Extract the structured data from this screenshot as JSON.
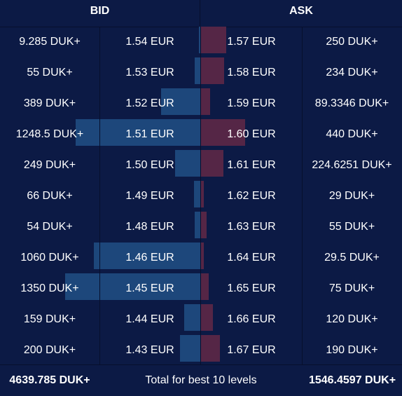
{
  "header": {
    "bid_label": "BID",
    "ask_label": "ASK"
  },
  "colors": {
    "background": "#0c1a45",
    "bid_bar": "#1f4b80",
    "ask_bar": "#5a2747",
    "grid": "#070f2c"
  },
  "max_bar_quantity": 1350,
  "levels": [
    {
      "bid_qty": "9.285 DUK+",
      "bid_qty_value": 9.285,
      "bid_price": "1.54 EUR",
      "ask_price": "1.57 EUR",
      "ask_qty": "250 DUK+",
      "ask_qty_value": 250
    },
    {
      "bid_qty": "55 DUK+",
      "bid_qty_value": 55,
      "bid_price": "1.53 EUR",
      "ask_price": "1.58 EUR",
      "ask_qty": "234 DUK+",
      "ask_qty_value": 234
    },
    {
      "bid_qty": "389 DUK+",
      "bid_qty_value": 389,
      "bid_price": "1.52 EUR",
      "ask_price": "1.59 EUR",
      "ask_qty": "89.3346 DUK+",
      "ask_qty_value": 89.3346
    },
    {
      "bid_qty": "1248.5 DUK+",
      "bid_qty_value": 1248.5,
      "bid_price": "1.51 EUR",
      "ask_price": "1.60 EUR",
      "ask_qty": "440 DUK+",
      "ask_qty_value": 440
    },
    {
      "bid_qty": "249 DUK+",
      "bid_qty_value": 249,
      "bid_price": "1.50 EUR",
      "ask_price": "1.61 EUR",
      "ask_qty": "224.6251 DUK+",
      "ask_qty_value": 224.6251
    },
    {
      "bid_qty": "66 DUK+",
      "bid_qty_value": 66,
      "bid_price": "1.49 EUR",
      "ask_price": "1.62 EUR",
      "ask_qty": "29 DUK+",
      "ask_qty_value": 29
    },
    {
      "bid_qty": "54 DUK+",
      "bid_qty_value": 54,
      "bid_price": "1.48 EUR",
      "ask_price": "1.63 EUR",
      "ask_qty": "55 DUK+",
      "ask_qty_value": 55
    },
    {
      "bid_qty": "1060 DUK+",
      "bid_qty_value": 1060,
      "bid_price": "1.46 EUR",
      "ask_price": "1.64 EUR",
      "ask_qty": "29.5 DUK+",
      "ask_qty_value": 29.5
    },
    {
      "bid_qty": "1350 DUK+",
      "bid_qty_value": 1350,
      "bid_price": "1.45 EUR",
      "ask_price": "1.65 EUR",
      "ask_qty": "75 DUK+",
      "ask_qty_value": 75
    },
    {
      "bid_qty": "159 DUK+",
      "bid_qty_value": 159,
      "bid_price": "1.44 EUR",
      "ask_price": "1.66 EUR",
      "ask_qty": "120 DUK+",
      "ask_qty_value": 120
    },
    {
      "bid_qty": "200 DUK+",
      "bid_qty_value": 200,
      "bid_price": "1.43 EUR",
      "ask_price": "1.67 EUR",
      "ask_qty": "190 DUK+",
      "ask_qty_value": 190
    }
  ],
  "footer": {
    "bid_total": "4639.785 DUK+",
    "label": "Total for best 10 levels",
    "ask_total": "1546.4597 DUK+"
  }
}
